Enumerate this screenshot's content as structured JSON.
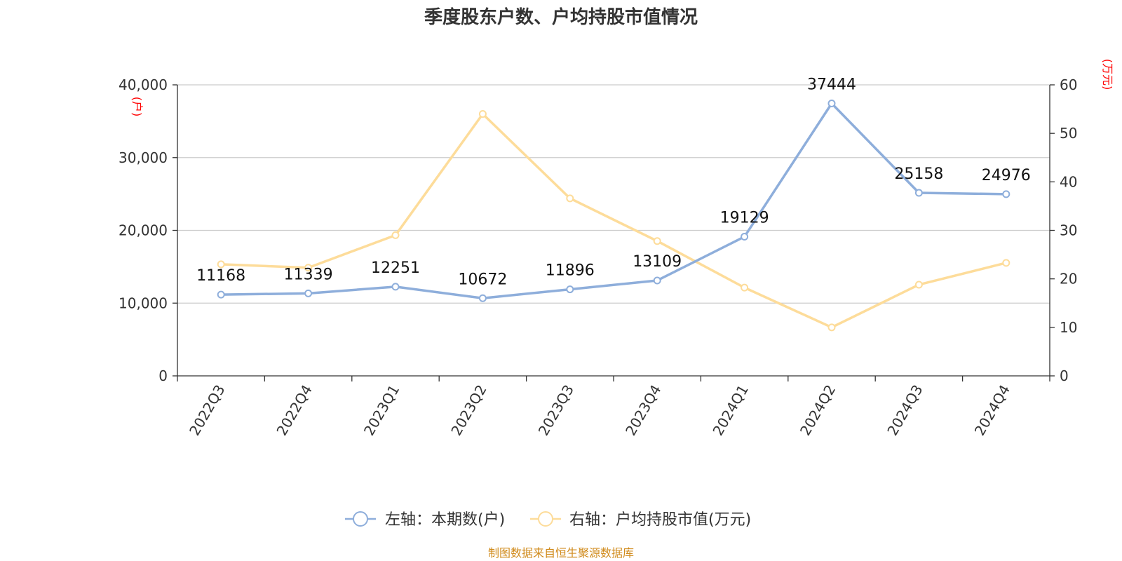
{
  "chart_data": {
    "type": "line",
    "title": "季度股东户数、户均持股市值情况",
    "categories": [
      "2022Q3",
      "2022Q4",
      "2023Q1",
      "2023Q2",
      "2023Q3",
      "2023Q4",
      "2024Q1",
      "2024Q2",
      "2024Q3",
      "2024Q4"
    ],
    "left_axis": {
      "unit": "(户)",
      "ylim": [
        0,
        40000
      ],
      "ticks": [
        "0",
        "10,000",
        "20,000",
        "30,000",
        "40,000"
      ]
    },
    "right_axis": {
      "unit": "(万元)",
      "ylim": [
        0,
        60
      ],
      "ticks": [
        "0",
        "10",
        "20",
        "30",
        "40",
        "50",
        "60"
      ]
    },
    "series": [
      {
        "name": "左轴：本期数(户)",
        "axis": "left",
        "color": "#8eaedb",
        "values": [
          11168,
          11339,
          12251,
          10672,
          11896,
          13109,
          19129,
          37444,
          25158,
          24976
        ],
        "labels": [
          "11168",
          "11339",
          "12251",
          "10672",
          "11896",
          "13109",
          "19129",
          "37444",
          "25158",
          "24976"
        ]
      },
      {
        "name": "右轴：户均持股市值(万元)",
        "axis": "right",
        "color": "#fddc9a",
        "values": [
          23.0,
          22.3,
          29.0,
          54.0,
          36.6,
          27.8,
          18.2,
          10.0,
          18.8,
          23.3
        ]
      }
    ],
    "grid": true,
    "legend_position": "bottom"
  },
  "source": "制图数据来自恒生聚源数据库",
  "colors": {
    "left_unit": "#ff0000",
    "source_text": "#d08a1a"
  }
}
